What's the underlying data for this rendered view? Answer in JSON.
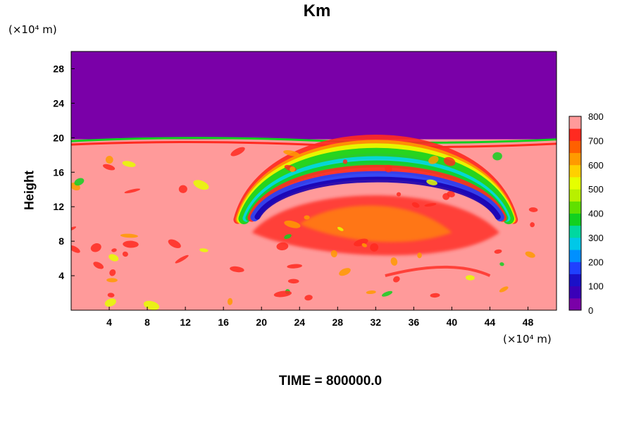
{
  "chart_data": {
    "type": "heatmap",
    "title": "Km",
    "ylabel": "Height",
    "x_unit": "(×10⁴ m)",
    "y_unit": "(×10⁴ m)",
    "footer": "TIME = 800000.0",
    "xlim": [
      0,
      51
    ],
    "ylim": [
      0,
      30
    ],
    "x_ticks": [
      "4",
      "8",
      "12",
      "16",
      "20",
      "24",
      "28",
      "32",
      "36",
      "40",
      "44",
      "48"
    ],
    "y_ticks": [
      "4",
      "8",
      "12",
      "16",
      "20",
      "24",
      "28"
    ],
    "colorbar": {
      "min": 0,
      "max": 800,
      "tick_labels": [
        "0",
        "100",
        "200",
        "300",
        "400",
        "500",
        "600",
        "700",
        "800"
      ]
    },
    "regions": [
      {
        "name": "upper layer",
        "y_range": [
          19.9,
          30
        ],
        "value": 0
      },
      {
        "name": "lower layer",
        "y_range": [
          0,
          19.9
        ],
        "value": 800
      }
    ],
    "arc": {
      "x_range": [
        18,
        47
      ],
      "y_range": [
        10,
        20
      ],
      "values": [
        100,
        300,
        500,
        700
      ]
    }
  },
  "colors": {
    "purple": "#7a00a8",
    "salmon": "#ff9a9a",
    "red": "#ff2a20",
    "orange": "#ff9a00",
    "yellow": "#e6ff00",
    "green": "#12d020",
    "cyan": "#00d8e8",
    "blue": "#1f40ff",
    "navy": "#1a00b0"
  }
}
